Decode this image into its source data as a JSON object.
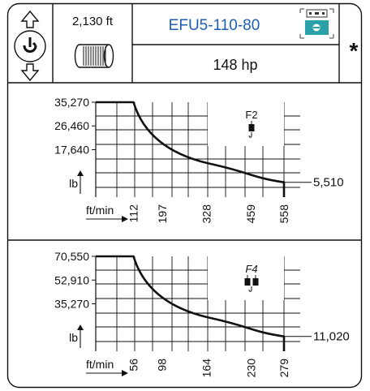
{
  "header": {
    "rope_length": "2,130 ft",
    "model": "EFU5-110-80",
    "power": "148 hp",
    "asterisk": "*",
    "icons": {
      "rotation": "rotation-hook-icon",
      "drum": "rope-drum-icon",
      "remote": "remote-control-icon"
    },
    "colors": {
      "model_text": "#1e5fb4",
      "remote_icon": "#2aa0a8",
      "line": "#111111"
    }
  },
  "charts": [
    {
      "reeving_label": "F2",
      "hook_count": 1,
      "y_unit": "lb",
      "x_unit": "ft/min",
      "y_ticks": [
        "35,270",
        "26,460",
        "17,640"
      ],
      "min_load_label": "5,510",
      "x_ticks": [
        "112",
        "197",
        "328",
        "459",
        "558"
      ]
    },
    {
      "reeving_label": "F4",
      "hook_count": 2,
      "y_unit": "lb",
      "x_unit": "ft/min",
      "y_ticks": [
        "70,550",
        "52,910",
        "35,270"
      ],
      "min_load_label": "11,020",
      "x_ticks": [
        "56",
        "98",
        "164",
        "230",
        "279"
      ]
    }
  ],
  "chart_data": [
    {
      "type": "line",
      "x": [
        0,
        112,
        197,
        328,
        459,
        558,
        558
      ],
      "y": [
        35270,
        35270,
        19500,
        11600,
        7700,
        5510,
        0
      ],
      "xlabel": "ft/min",
      "ylabel": "lb",
      "y_tick_values": [
        35270,
        26460,
        17640
      ],
      "x_tick_values": [
        112,
        197,
        328,
        459,
        558
      ],
      "annotation": "F2"
    },
    {
      "type": "line",
      "x": [
        0,
        56,
        98,
        164,
        230,
        279,
        279
      ],
      "y": [
        70550,
        70550,
        39000,
        23200,
        15400,
        11020,
        0
      ],
      "xlabel": "ft/min",
      "ylabel": "lb",
      "y_tick_values": [
        70550,
        52910,
        35270
      ],
      "x_tick_values": [
        56,
        98,
        164,
        230,
        279
      ],
      "annotation": "F4"
    }
  ]
}
